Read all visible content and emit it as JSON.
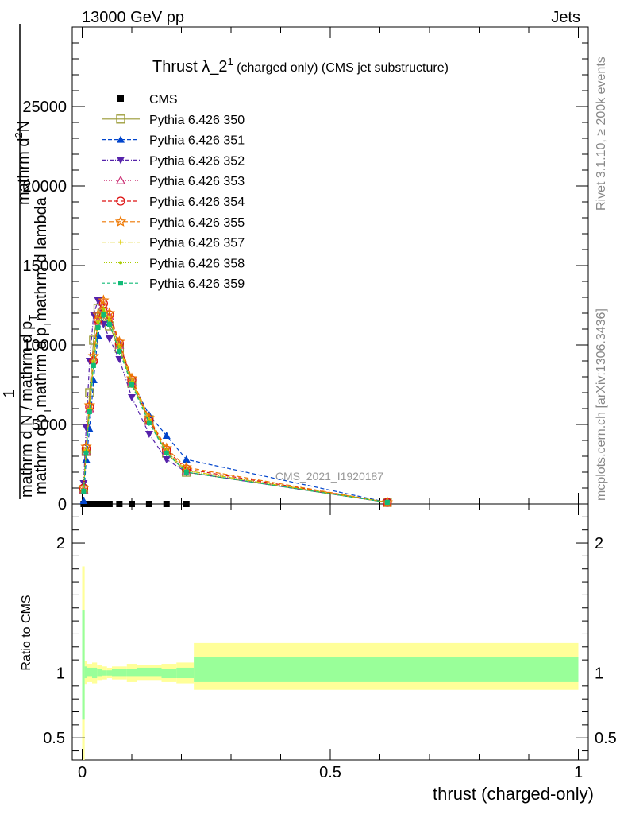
{
  "header": {
    "left": "13000 GeV pp",
    "right": "Jets"
  },
  "side": {
    "rivet": "Rivet 3.1.10, ≥ 200k events",
    "mcplots": "mcplots.cern.ch [arXiv:1306.3436]"
  },
  "colors": {
    "cms": "#000000",
    "band_inner": "#99ff99",
    "band_outer": "#ffff99"
  },
  "chart_data": [
    {
      "type": "line",
      "title_main": "Thrust λ_2",
      "title_sup": "1",
      "title_rest": " (charged only) (CMS jet substructure)",
      "ylabel": "1 / mathrm d N / mathrm d p_T mathrm d p_T mathrm d lambda mathrm d^2N",
      "ylabel_lines": [
        "mathrm d",
        "2",
        "N",
        "mathrm d p",
        "T",
        "mathrm d p",
        "T",
        "mathrm d lambda",
        "1",
        "mathrm d N / mathrm d p",
        "T"
      ],
      "ylim": [
        0,
        30000
      ],
      "yticks": [
        0,
        5000,
        10000,
        15000,
        20000,
        25000
      ],
      "ytick_labels": [
        "0",
        "5000",
        "10000",
        "15000",
        "20000",
        "25000"
      ],
      "watermark": "CMS_2021_I1920187",
      "x": [
        0.003,
        0.008,
        0.015,
        0.023,
        0.032,
        0.043,
        0.055,
        0.075,
        0.1,
        0.135,
        0.17,
        0.21,
        0.615
      ],
      "series": [
        {
          "name": "CMS",
          "color": "#000000",
          "marker": "filled-square",
          "dash": "",
          "values": [
            0,
            0,
            0,
            0,
            0,
            0,
            0,
            0,
            0,
            0,
            0,
            0,
            0
          ]
        },
        {
          "name": "Pythia 6.426 350",
          "color": "#999933",
          "marker": "open-square",
          "dash": "",
          "values": [
            900,
            3300,
            7000,
            10300,
            12300,
            11800,
            11200,
            9800,
            7600,
            5300,
            3200,
            2000,
            100
          ]
        },
        {
          "name": "Pythia 6.426 351",
          "color": "#0044cc",
          "marker": "filled-triangle-up",
          "dash": "5,3",
          "values": [
            200,
            2800,
            4700,
            7800,
            10600,
            12000,
            11400,
            10100,
            7700,
            5600,
            4300,
            2800,
            100
          ]
        },
        {
          "name": "Pythia 6.426 352",
          "color": "#5522aa",
          "marker": "filled-triangle-down",
          "dash": "5,2,1,2",
          "values": [
            1300,
            4800,
            9000,
            11900,
            12800,
            11300,
            10400,
            9100,
            6700,
            4400,
            2800,
            2000,
            100
          ]
        },
        {
          "name": "Pythia 6.426 353",
          "color": "#cc3377",
          "marker": "open-triangle-up",
          "dash": "1,2",
          "values": [
            900,
            3300,
            6000,
            9100,
            11500,
            12500,
            11800,
            10000,
            7700,
            5200,
            3300,
            2100,
            100
          ]
        },
        {
          "name": "Pythia 6.426 354",
          "color": "#dd1111",
          "marker": "open-circle",
          "dash": "5,3",
          "values": [
            1000,
            3500,
            6100,
            9000,
            11600,
            12600,
            11900,
            10100,
            7800,
            5300,
            3400,
            2200,
            100
          ]
        },
        {
          "name": "Pythia 6.426 355",
          "color": "#ee7700",
          "marker": "open-star",
          "dash": "6,3",
          "values": [
            1000,
            3600,
            6200,
            9300,
            11900,
            12800,
            12000,
            10200,
            7900,
            5400,
            3500,
            2300,
            100
          ]
        },
        {
          "name": "Pythia 6.426 357",
          "color": "#ddcc00",
          "marker": "small-cross",
          "dash": "6,2,1,2",
          "values": [
            900,
            3400,
            6000,
            9000,
            11500,
            12300,
            11600,
            9900,
            7700,
            5300,
            3300,
            2100,
            100
          ]
        },
        {
          "name": "Pythia 6.426 358",
          "color": "#aacc00",
          "marker": "small-dot",
          "dash": "1,2",
          "values": [
            900,
            3300,
            5900,
            8900,
            11400,
            12200,
            11500,
            9800,
            7600,
            5200,
            3300,
            2100,
            100
          ]
        },
        {
          "name": "Pythia 6.426 359",
          "color": "#11bb77",
          "marker": "filled-square-small",
          "dash": "4,3",
          "values": [
            800,
            3200,
            5800,
            8700,
            11100,
            11900,
            11300,
            9600,
            7500,
            5100,
            3200,
            2000,
            100
          ]
        }
      ]
    },
    {
      "type": "area",
      "ylabel": "Ratio to CMS",
      "xlabel": "thrust (charged-only)",
      "xlim": [
        -0.02,
        1.02
      ],
      "xticks": [
        0,
        0.5,
        1
      ],
      "xtick_labels": [
        "0",
        "0.5",
        "1"
      ],
      "ylim": [
        0.33,
        2.3
      ],
      "yticks": [
        0.5,
        1,
        2
      ],
      "ytick_labels": [
        "0.5",
        "1",
        "2"
      ],
      "bin_edges": [
        0,
        0.005,
        0.01,
        0.02,
        0.03,
        0.04,
        0.05,
        0.06,
        0.09,
        0.11,
        0.16,
        0.19,
        0.225,
        1.0
      ],
      "outer_low": [
        0.25,
        0.91,
        0.93,
        0.92,
        0.94,
        0.95,
        0.96,
        0.95,
        0.93,
        0.94,
        0.93,
        0.92,
        0.87
      ],
      "outer_high": [
        1.82,
        1.09,
        1.07,
        1.08,
        1.06,
        1.05,
        1.04,
        1.05,
        1.07,
        1.06,
        1.07,
        1.08,
        1.23
      ],
      "inner_low": [
        0.64,
        0.96,
        0.97,
        0.96,
        0.97,
        0.98,
        0.98,
        0.97,
        0.97,
        0.97,
        0.96,
        0.96,
        0.93
      ],
      "inner_high": [
        1.48,
        1.05,
        1.04,
        1.04,
        1.03,
        1.02,
        1.02,
        1.03,
        1.03,
        1.04,
        1.03,
        1.04,
        1.12
      ],
      "reference": 1
    }
  ]
}
